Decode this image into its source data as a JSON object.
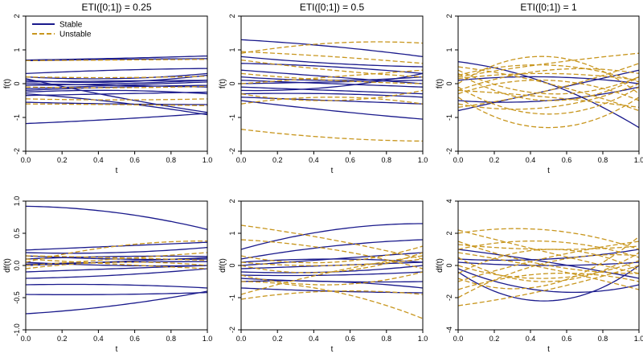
{
  "colors": {
    "stable": "#1a1a8c",
    "unstable": "#c8961e"
  },
  "legend": [
    {
      "key": "stable",
      "label": "Stable",
      "dash": false
    },
    {
      "key": "unstable",
      "label": "Unstable",
      "dash": true
    }
  ],
  "chart_data": [
    {
      "type": "line",
      "title": "ETI([0;1]) = 0.25",
      "xlabel": "t",
      "ylabel": "f(t)",
      "xlim": [
        0,
        1
      ],
      "ylim": [
        -2,
        2
      ],
      "xticks": [
        0.0,
        0.2,
        0.4,
        0.6,
        0.8,
        1.0
      ],
      "xtick_labels": [
        "0.0",
        "0.2",
        "0.4",
        "0.6",
        "0.8",
        "1.0"
      ],
      "yticks": [
        -2,
        -1,
        0,
        1,
        2
      ],
      "ytick_labels": [
        "-2",
        "-1",
        "0",
        "1",
        "2"
      ],
      "x": [
        0,
        0.5,
        1
      ],
      "series": [
        {
          "group": "stable",
          "y": [
            0.7,
            0.75,
            0.82
          ]
        },
        {
          "group": "stable",
          "y": [
            0.68,
            0.72,
            0.74
          ]
        },
        {
          "group": "stable",
          "y": [
            0.3,
            0.4,
            0.45
          ]
        },
        {
          "group": "stable",
          "y": [
            0.2,
            0.15,
            0.3
          ]
        },
        {
          "group": "stable",
          "y": [
            0.1,
            0.05,
            0.25
          ]
        },
        {
          "group": "stable",
          "y": [
            0.05,
            0.08,
            0.1
          ]
        },
        {
          "group": "stable",
          "y": [
            0.0,
            -0.05,
            -0.1
          ]
        },
        {
          "group": "stable",
          "y": [
            -0.05,
            0.0,
            0.1
          ]
        },
        {
          "group": "stable",
          "y": [
            -0.15,
            -0.05,
            0.05
          ]
        },
        {
          "group": "stable",
          "y": [
            -0.2,
            -0.1,
            -0.05
          ]
        },
        {
          "group": "stable",
          "y": [
            -0.25,
            -0.2,
            -0.3
          ]
        },
        {
          "group": "stable",
          "y": [
            -0.35,
            -0.3,
            -0.25
          ]
        },
        {
          "group": "stable",
          "y": [
            -0.55,
            -0.6,
            -0.62
          ]
        },
        {
          "group": "stable",
          "y": [
            0.15,
            -0.4,
            -0.85
          ]
        },
        {
          "group": "stable",
          "y": [
            -0.3,
            -0.55,
            -0.92
          ]
        },
        {
          "group": "stable",
          "y": [
            -1.18,
            -1.05,
            -0.88
          ]
        },
        {
          "group": "unstable",
          "y": [
            0.68,
            0.7,
            0.72
          ]
        },
        {
          "group": "unstable",
          "y": [
            0.2,
            0.18,
            0.22
          ]
        },
        {
          "group": "unstable",
          "y": [
            -0.1,
            -0.12,
            -0.08
          ]
        },
        {
          "group": "unstable",
          "y": [
            -0.45,
            -0.48,
            -0.45
          ]
        },
        {
          "group": "unstable",
          "y": [
            -0.6,
            -0.62,
            -0.65
          ]
        }
      ]
    },
    {
      "type": "line",
      "title": "ETI([0;1]) = 0.5",
      "xlabel": "t",
      "ylabel": "f(t)",
      "xlim": [
        0,
        1
      ],
      "ylim": [
        -2,
        2
      ],
      "xticks": [
        0.0,
        0.2,
        0.4,
        0.6,
        0.8,
        1.0
      ],
      "xtick_labels": [
        "0.0",
        "0.2",
        "0.4",
        "0.6",
        "0.8",
        "1.0"
      ],
      "yticks": [
        -2,
        -1,
        0,
        1,
        2
      ],
      "ytick_labels": [
        "-2",
        "-1",
        "0",
        "1",
        "2"
      ],
      "x": [
        0,
        0.5,
        1
      ],
      "series": [
        {
          "group": "stable",
          "y": [
            1.3,
            1.1,
            0.8
          ]
        },
        {
          "group": "stable",
          "y": [
            0.8,
            0.6,
            0.5
          ]
        },
        {
          "group": "stable",
          "y": [
            0.6,
            0.5,
            0.3
          ]
        },
        {
          "group": "stable",
          "y": [
            0.4,
            0.2,
            0.0
          ]
        },
        {
          "group": "stable",
          "y": [
            0.2,
            0.1,
            0.2
          ]
        },
        {
          "group": "stable",
          "y": [
            0.1,
            0.0,
            -0.1
          ]
        },
        {
          "group": "stable",
          "y": [
            -0.2,
            -0.1,
            0.3
          ]
        },
        {
          "group": "stable",
          "y": [
            -0.3,
            -0.3,
            -0.4
          ]
        },
        {
          "group": "stable",
          "y": [
            -0.4,
            -0.5,
            -0.6
          ]
        },
        {
          "group": "stable",
          "y": [
            -0.5,
            -0.8,
            -1.05
          ]
        },
        {
          "group": "stable",
          "y": [
            0.0,
            0.05,
            0.1
          ]
        },
        {
          "group": "stable",
          "y": [
            -0.1,
            -0.2,
            -0.3
          ]
        },
        {
          "group": "unstable",
          "y": [
            0.9,
            1.2,
            1.2
          ]
        },
        {
          "group": "unstable",
          "y": [
            0.95,
            0.8,
            0.6
          ]
        },
        {
          "group": "unstable",
          "y": [
            0.7,
            0.4,
            0.2
          ]
        },
        {
          "group": "unstable",
          "y": [
            0.0,
            0.2,
            0.4
          ]
        },
        {
          "group": "unstable",
          "y": [
            -0.3,
            -0.5,
            -0.2
          ]
        },
        {
          "group": "unstable",
          "y": [
            -0.6,
            -0.4,
            -0.6
          ]
        },
        {
          "group": "unstable",
          "y": [
            -1.35,
            -1.6,
            -1.7
          ]
        },
        {
          "group": "unstable",
          "y": [
            0.3,
            0.1,
            0.0
          ]
        }
      ]
    },
    {
      "type": "line",
      "title": "ETI([0;1]) = 1",
      "xlabel": "t",
      "ylabel": "f(t)",
      "xlim": [
        0,
        1
      ],
      "ylim": [
        -2,
        2
      ],
      "xticks": [
        0.0,
        0.2,
        0.4,
        0.6,
        0.8,
        1.0
      ],
      "xtick_labels": [
        "0.0",
        "0.2",
        "0.4",
        "0.6",
        "0.8",
        "1.0"
      ],
      "yticks": [
        -2,
        -1,
        0,
        1,
        2
      ],
      "ytick_labels": [
        "-2",
        "-1",
        "0",
        "1",
        "2"
      ],
      "x": [
        0,
        0.5,
        1
      ],
      "series": [
        {
          "group": "stable",
          "y": [
            0.65,
            0.0,
            -1.3
          ]
        },
        {
          "group": "stable",
          "y": [
            -0.8,
            -0.2,
            0.4
          ]
        },
        {
          "group": "stable",
          "y": [
            0.1,
            0.2,
            0.0
          ]
        },
        {
          "group": "stable",
          "y": [
            -0.5,
            -0.5,
            -0.1
          ]
        },
        {
          "group": "unstable",
          "y": [
            0.2,
            0.6,
            0.9
          ]
        },
        {
          "group": "unstable",
          "y": [
            -0.2,
            0.4,
            0.3
          ]
        },
        {
          "group": "unstable",
          "y": [
            0.3,
            -0.5,
            0.2
          ]
        },
        {
          "group": "unstable",
          "y": [
            -0.4,
            -1.3,
            -0.4
          ]
        },
        {
          "group": "unstable",
          "y": [
            0.0,
            0.8,
            -0.3
          ]
        },
        {
          "group": "unstable",
          "y": [
            -0.7,
            -0.2,
            0.6
          ]
        },
        {
          "group": "unstable",
          "y": [
            0.5,
            0.0,
            -0.8
          ]
        },
        {
          "group": "unstable",
          "y": [
            -0.1,
            -0.9,
            -0.1
          ]
        },
        {
          "group": "unstable",
          "y": [
            0.15,
            0.3,
            0.1
          ]
        },
        {
          "group": "unstable",
          "y": [
            -0.3,
            0.1,
            -0.5
          ]
        },
        {
          "group": "unstable",
          "y": [
            0.4,
            -0.3,
            0.2
          ]
        },
        {
          "group": "unstable",
          "y": [
            -0.6,
            -0.7,
            0.0
          ]
        },
        {
          "group": "unstable",
          "y": [
            0.25,
            0.55,
            0.05
          ]
        },
        {
          "group": "unstable",
          "y": [
            -0.2,
            -0.4,
            -0.7
          ]
        }
      ]
    },
    {
      "type": "line",
      "title": "",
      "xlabel": "t",
      "ylabel": "df(t)",
      "xlim": [
        0,
        1
      ],
      "ylim": [
        -1,
        1
      ],
      "xticks": [
        0.0,
        0.2,
        0.4,
        0.6,
        0.8,
        1.0
      ],
      "xtick_labels": [
        "0.0",
        "0.2",
        "0.4",
        "0.6",
        "0.8",
        "1.0"
      ],
      "yticks": [
        -1,
        -0.5,
        0,
        0.5,
        1
      ],
      "ytick_labels": [
        "-1.0",
        "-0.5",
        "0.0",
        "0.5",
        "1.0"
      ],
      "x": [
        0,
        0.5,
        1
      ],
      "series": [
        {
          "group": "stable",
          "y": [
            0.92,
            0.82,
            0.56
          ]
        },
        {
          "group": "stable",
          "y": [
            0.24,
            0.3,
            0.36
          ]
        },
        {
          "group": "stable",
          "y": [
            0.2,
            0.2,
            0.28
          ]
        },
        {
          "group": "stable",
          "y": [
            0.15,
            0.1,
            0.1
          ]
        },
        {
          "group": "stable",
          "y": [
            0.1,
            0.14,
            0.14
          ]
        },
        {
          "group": "stable",
          "y": [
            0.05,
            0.0,
            0.0
          ]
        },
        {
          "group": "stable",
          "y": [
            0.0,
            0.06,
            0.12
          ]
        },
        {
          "group": "stable",
          "y": [
            -0.1,
            -0.05,
            0.0
          ]
        },
        {
          "group": "stable",
          "y": [
            -0.2,
            -0.15,
            -0.05
          ]
        },
        {
          "group": "stable",
          "y": [
            -0.3,
            -0.3,
            -0.35
          ]
        },
        {
          "group": "stable",
          "y": [
            -0.45,
            -0.45,
            -0.42
          ]
        },
        {
          "group": "stable",
          "y": [
            -0.75,
            -0.62,
            -0.4
          ]
        },
        {
          "group": "stable",
          "y": [
            0.02,
            0.05,
            0.06
          ]
        },
        {
          "group": "unstable",
          "y": [
            0.05,
            0.3,
            0.38
          ]
        },
        {
          "group": "unstable",
          "y": [
            0.0,
            0.1,
            0.2
          ]
        },
        {
          "group": "unstable",
          "y": [
            0.1,
            0.02,
            -0.05
          ]
        },
        {
          "group": "unstable",
          "y": [
            -0.05,
            0.05,
            0.0
          ]
        },
        {
          "group": "unstable",
          "y": [
            0.15,
            0.12,
            0.08
          ]
        }
      ]
    },
    {
      "type": "line",
      "title": "",
      "xlabel": "t",
      "ylabel": "df(t)",
      "xlim": [
        0,
        1
      ],
      "ylim": [
        -2,
        2
      ],
      "xticks": [
        0.0,
        0.2,
        0.4,
        0.6,
        0.8,
        1.0
      ],
      "xtick_labels": [
        "0.0",
        "0.2",
        "0.4",
        "0.6",
        "0.8",
        "1.0"
      ],
      "yticks": [
        -2,
        -1,
        0,
        1,
        2
      ],
      "ytick_labels": [
        "-2",
        "-1",
        "0",
        "1",
        "2"
      ],
      "x": [
        0,
        0.5,
        1
      ],
      "series": [
        {
          "group": "stable",
          "y": [
            0.5,
            1.1,
            1.3
          ]
        },
        {
          "group": "stable",
          "y": [
            0.2,
            0.6,
            0.8
          ]
        },
        {
          "group": "stable",
          "y": [
            0.0,
            0.2,
            0.4
          ]
        },
        {
          "group": "stable",
          "y": [
            -0.1,
            0.0,
            0.1
          ]
        },
        {
          "group": "stable",
          "y": [
            -0.2,
            -0.2,
            0.0
          ]
        },
        {
          "group": "stable",
          "y": [
            -0.3,
            -0.3,
            -0.2
          ]
        },
        {
          "group": "stable",
          "y": [
            -0.4,
            -0.5,
            -0.5
          ]
        },
        {
          "group": "stable",
          "y": [
            -0.5,
            -0.5,
            -0.7
          ]
        },
        {
          "group": "stable",
          "y": [
            -0.7,
            -0.8,
            -0.85
          ]
        },
        {
          "group": "stable",
          "y": [
            0.1,
            0.2,
            0.1
          ]
        },
        {
          "group": "unstable",
          "y": [
            1.25,
            0.8,
            0.2
          ]
        },
        {
          "group": "unstable",
          "y": [
            0.8,
            0.5,
            -0.1
          ]
        },
        {
          "group": "unstable",
          "y": [
            0.3,
            0.1,
            0.6
          ]
        },
        {
          "group": "unstable",
          "y": [
            0.0,
            -0.2,
            0.4
          ]
        },
        {
          "group": "unstable",
          "y": [
            -0.3,
            -0.6,
            -0.2
          ]
        },
        {
          "group": "unstable",
          "y": [
            -0.9,
            -0.2,
            0.3
          ]
        },
        {
          "group": "unstable",
          "y": [
            -1.05,
            -0.8,
            -0.9
          ]
        },
        {
          "group": "unstable",
          "y": [
            -0.5,
            -0.8,
            -1.65
          ]
        },
        {
          "group": "unstable",
          "y": [
            0.1,
            0.0,
            0.2
          ]
        }
      ]
    },
    {
      "type": "line",
      "title": "",
      "xlabel": "t",
      "ylabel": "df(t)",
      "xlim": [
        0,
        1
      ],
      "ylim": [
        -4,
        4
      ],
      "xticks": [
        0.0,
        0.2,
        0.4,
        0.6,
        0.8,
        1.0
      ],
      "xtick_labels": [
        "0.0",
        "0.2",
        "0.4",
        "0.6",
        "0.8",
        "1.0"
      ],
      "yticks": [
        -4,
        -2,
        0,
        2,
        4
      ],
      "ytick_labels": [
        "-4",
        "-2",
        "0",
        "2",
        "4"
      ],
      "x": [
        0,
        0.5,
        1
      ],
      "series": [
        {
          "group": "stable",
          "y": [
            1.0,
            0.2,
            -0.8
          ]
        },
        {
          "group": "stable",
          "y": [
            -0.4,
            -2.2,
            0.0
          ]
        },
        {
          "group": "stable",
          "y": [
            0.4,
            0.4,
            1.0
          ]
        },
        {
          "group": "stable",
          "y": [
            0.2,
            0.0,
            0.2
          ]
        },
        {
          "group": "stable",
          "y": [
            -0.2,
            -1.6,
            -1.2
          ]
        },
        {
          "group": "unstable",
          "y": [
            2.0,
            2.2,
            1.0
          ]
        },
        {
          "group": "unstable",
          "y": [
            1.5,
            0.0,
            -0.5
          ]
        },
        {
          "group": "unstable",
          "y": [
            -1.0,
            0.5,
            1.5
          ]
        },
        {
          "group": "unstable",
          "y": [
            -2.5,
            -1.5,
            0.0
          ]
        },
        {
          "group": "unstable",
          "y": [
            0.5,
            -1.0,
            0.8
          ]
        },
        {
          "group": "unstable",
          "y": [
            -0.5,
            1.0,
            -0.3
          ]
        },
        {
          "group": "unstable",
          "y": [
            1.0,
            1.5,
            0.5
          ]
        },
        {
          "group": "unstable",
          "y": [
            -1.5,
            -0.5,
            -1.0
          ]
        },
        {
          "group": "unstable",
          "y": [
            0.0,
            -0.8,
            0.3
          ]
        },
        {
          "group": "unstable",
          "y": [
            2.2,
            0.8,
            -0.5
          ]
        },
        {
          "group": "unstable",
          "y": [
            -2.0,
            0.2,
            0.6
          ]
        },
        {
          "group": "unstable",
          "y": [
            0.8,
            -0.2,
            -1.5
          ]
        },
        {
          "group": "unstable",
          "y": [
            -0.8,
            -1.2,
            1.8
          ]
        },
        {
          "group": "unstable",
          "y": [
            1.3,
            1.0,
            1.2
          ]
        }
      ]
    }
  ]
}
